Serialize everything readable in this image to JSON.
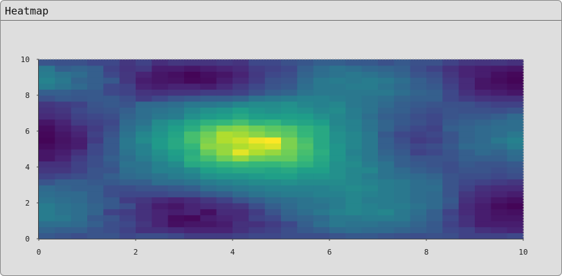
{
  "window": {
    "title": "Heatmap"
  },
  "chart_data": {
    "type": "heatmap",
    "title": "",
    "xlabel": "",
    "ylabel": "",
    "xlim": [
      0,
      10
    ],
    "ylim": [
      0,
      10
    ],
    "xticks": [
      "0",
      "2",
      "4",
      "6",
      "8",
      "10"
    ],
    "yticks": [
      "0",
      "2",
      "4",
      "6",
      "8",
      "10"
    ],
    "grid": false,
    "colormap": "viridis",
    "colormap_stops": [
      "#440154",
      "#482878",
      "#3e4989",
      "#31688e",
      "#26828e",
      "#1f9e89",
      "#35b779",
      "#6ece58",
      "#b5de2b",
      "#fde725"
    ],
    "value_range": [
      0,
      1
    ],
    "nx": 30,
    "ny": 30,
    "z": [
      [
        0.28,
        0.26,
        0.24,
        0.26,
        0.26,
        0.22,
        0.24,
        0.24,
        0.22,
        0.18,
        0.18,
        0.18,
        0.2,
        0.22,
        0.22,
        0.24,
        0.24,
        0.24,
        0.26,
        0.28,
        0.28,
        0.26,
        0.25,
        0.24,
        0.25,
        0.24,
        0.2,
        0.2,
        0.2,
        0.22
      ],
      [
        0.32,
        0.3,
        0.3,
        0.26,
        0.24,
        0.2,
        0.14,
        0.14,
        0.12,
        0.1,
        0.1,
        0.1,
        0.14,
        0.18,
        0.2,
        0.24,
        0.28,
        0.3,
        0.34,
        0.36,
        0.34,
        0.34,
        0.32,
        0.3,
        0.28,
        0.22,
        0.2,
        0.14,
        0.12,
        0.1
      ],
      [
        0.36,
        0.36,
        0.34,
        0.3,
        0.24,
        0.22,
        0.16,
        0.1,
        0.04,
        0.06,
        0.06,
        0.08,
        0.14,
        0.14,
        0.18,
        0.22,
        0.3,
        0.36,
        0.4,
        0.38,
        0.38,
        0.36,
        0.36,
        0.32,
        0.28,
        0.2,
        0.14,
        0.08,
        0.08,
        0.08
      ],
      [
        0.42,
        0.4,
        0.36,
        0.28,
        0.26,
        0.2,
        0.14,
        0.1,
        0.03,
        0.02,
        0.08,
        0.1,
        0.12,
        0.2,
        0.22,
        0.3,
        0.32,
        0.34,
        0.4,
        0.4,
        0.42,
        0.42,
        0.4,
        0.34,
        0.3,
        0.22,
        0.14,
        0.08,
        0.06,
        0.06
      ],
      [
        0.42,
        0.38,
        0.36,
        0.32,
        0.2,
        0.18,
        0.14,
        0.1,
        0.08,
        0.1,
        0.04,
        0.12,
        0.12,
        0.18,
        0.26,
        0.32,
        0.36,
        0.4,
        0.44,
        0.46,
        0.44,
        0.46,
        0.4,
        0.36,
        0.3,
        0.2,
        0.12,
        0.08,
        0.05,
        0.04
      ],
      [
        0.42,
        0.38,
        0.36,
        0.32,
        0.28,
        0.24,
        0.14,
        0.08,
        0.06,
        0.1,
        0.12,
        0.14,
        0.16,
        0.24,
        0.3,
        0.34,
        0.38,
        0.38,
        0.42,
        0.46,
        0.44,
        0.42,
        0.42,
        0.38,
        0.34,
        0.26,
        0.12,
        0.08,
        0.03,
        0.01
      ],
      [
        0.38,
        0.36,
        0.34,
        0.3,
        0.28,
        0.18,
        0.16,
        0.12,
        0.1,
        0.12,
        0.16,
        0.2,
        0.26,
        0.3,
        0.34,
        0.36,
        0.38,
        0.4,
        0.42,
        0.46,
        0.42,
        0.42,
        0.4,
        0.36,
        0.34,
        0.28,
        0.14,
        0.1,
        0.06,
        0.04
      ],
      [
        0.36,
        0.34,
        0.34,
        0.3,
        0.24,
        0.22,
        0.22,
        0.22,
        0.24,
        0.24,
        0.28,
        0.3,
        0.34,
        0.38,
        0.4,
        0.42,
        0.42,
        0.44,
        0.44,
        0.46,
        0.44,
        0.42,
        0.4,
        0.36,
        0.34,
        0.26,
        0.16,
        0.12,
        0.1,
        0.08
      ],
      [
        0.34,
        0.32,
        0.3,
        0.3,
        0.24,
        0.24,
        0.26,
        0.26,
        0.28,
        0.3,
        0.36,
        0.38,
        0.4,
        0.42,
        0.44,
        0.44,
        0.44,
        0.44,
        0.46,
        0.48,
        0.46,
        0.42,
        0.4,
        0.36,
        0.36,
        0.26,
        0.2,
        0.14,
        0.12,
        0.12
      ],
      [
        0.26,
        0.3,
        0.3,
        0.28,
        0.28,
        0.3,
        0.3,
        0.36,
        0.36,
        0.38,
        0.42,
        0.44,
        0.46,
        0.48,
        0.48,
        0.5,
        0.48,
        0.48,
        0.48,
        0.46,
        0.44,
        0.42,
        0.4,
        0.36,
        0.34,
        0.26,
        0.22,
        0.2,
        0.18,
        0.16
      ],
      [
        0.2,
        0.22,
        0.24,
        0.26,
        0.3,
        0.34,
        0.36,
        0.38,
        0.42,
        0.44,
        0.5,
        0.52,
        0.52,
        0.54,
        0.56,
        0.56,
        0.52,
        0.52,
        0.5,
        0.46,
        0.42,
        0.38,
        0.36,
        0.34,
        0.32,
        0.26,
        0.24,
        0.24,
        0.22,
        0.24
      ],
      [
        0.16,
        0.16,
        0.2,
        0.26,
        0.26,
        0.36,
        0.38,
        0.44,
        0.44,
        0.48,
        0.56,
        0.58,
        0.6,
        0.6,
        0.58,
        0.6,
        0.56,
        0.56,
        0.5,
        0.46,
        0.46,
        0.38,
        0.34,
        0.3,
        0.28,
        0.24,
        0.26,
        0.26,
        0.24,
        0.26
      ],
      [
        0.14,
        0.14,
        0.2,
        0.24,
        0.28,
        0.38,
        0.38,
        0.44,
        0.48,
        0.6,
        0.62,
        0.66,
        0.68,
        0.66,
        0.66,
        0.68,
        0.64,
        0.58,
        0.5,
        0.48,
        0.42,
        0.38,
        0.3,
        0.28,
        0.26,
        0.24,
        0.28,
        0.26,
        0.26,
        0.28
      ],
      [
        0.06,
        0.1,
        0.18,
        0.24,
        0.3,
        0.36,
        0.42,
        0.48,
        0.54,
        0.64,
        0.7,
        0.78,
        0.84,
        0.78,
        0.76,
        0.76,
        0.68,
        0.6,
        0.52,
        0.46,
        0.4,
        0.34,
        0.3,
        0.26,
        0.26,
        0.26,
        0.3,
        0.3,
        0.3,
        0.34
      ],
      [
        0.06,
        0.08,
        0.14,
        0.22,
        0.28,
        0.38,
        0.44,
        0.5,
        0.56,
        0.62,
        0.76,
        0.84,
        0.96,
        0.88,
        0.84,
        0.78,
        0.7,
        0.62,
        0.52,
        0.44,
        0.4,
        0.32,
        0.28,
        0.2,
        0.22,
        0.26,
        0.3,
        0.34,
        0.32,
        0.36
      ],
      [
        0.03,
        0.06,
        0.08,
        0.22,
        0.28,
        0.4,
        0.44,
        0.54,
        0.6,
        0.66,
        0.82,
        0.84,
        0.88,
        0.92,
        0.95,
        0.8,
        0.72,
        0.6,
        0.52,
        0.46,
        0.4,
        0.3,
        0.26,
        0.22,
        0.24,
        0.28,
        0.34,
        0.35,
        0.36,
        0.42
      ],
      [
        0.01,
        0.05,
        0.08,
        0.18,
        0.28,
        0.4,
        0.48,
        0.54,
        0.6,
        0.7,
        0.8,
        0.88,
        0.92,
        0.98,
        1.0,
        0.8,
        0.7,
        0.6,
        0.5,
        0.46,
        0.4,
        0.3,
        0.24,
        0.18,
        0.2,
        0.26,
        0.32,
        0.34,
        0.4,
        0.44
      ],
      [
        0.02,
        0.06,
        0.1,
        0.2,
        0.26,
        0.38,
        0.46,
        0.52,
        0.58,
        0.7,
        0.78,
        0.88,
        0.86,
        0.82,
        0.78,
        0.74,
        0.66,
        0.6,
        0.5,
        0.46,
        0.4,
        0.28,
        0.22,
        0.2,
        0.22,
        0.26,
        0.32,
        0.34,
        0.36,
        0.4
      ],
      [
        0.03,
        0.08,
        0.12,
        0.18,
        0.24,
        0.36,
        0.42,
        0.5,
        0.56,
        0.62,
        0.72,
        0.8,
        0.82,
        0.78,
        0.74,
        0.72,
        0.65,
        0.6,
        0.48,
        0.44,
        0.38,
        0.32,
        0.26,
        0.22,
        0.2,
        0.3,
        0.32,
        0.34,
        0.36,
        0.36
      ],
      [
        0.06,
        0.1,
        0.18,
        0.2,
        0.22,
        0.34,
        0.38,
        0.48,
        0.52,
        0.58,
        0.64,
        0.66,
        0.7,
        0.64,
        0.66,
        0.6,
        0.58,
        0.55,
        0.46,
        0.44,
        0.38,
        0.32,
        0.28,
        0.25,
        0.22,
        0.28,
        0.3,
        0.32,
        0.34,
        0.36
      ],
      [
        0.12,
        0.14,
        0.2,
        0.22,
        0.24,
        0.32,
        0.36,
        0.4,
        0.42,
        0.5,
        0.54,
        0.56,
        0.6,
        0.56,
        0.55,
        0.56,
        0.55,
        0.5,
        0.46,
        0.42,
        0.36,
        0.3,
        0.28,
        0.24,
        0.22,
        0.26,
        0.28,
        0.28,
        0.3,
        0.34
      ],
      [
        0.14,
        0.16,
        0.22,
        0.25,
        0.26,
        0.3,
        0.36,
        0.38,
        0.4,
        0.46,
        0.5,
        0.52,
        0.56,
        0.52,
        0.5,
        0.52,
        0.5,
        0.46,
        0.48,
        0.42,
        0.38,
        0.32,
        0.3,
        0.26,
        0.24,
        0.26,
        0.25,
        0.25,
        0.24,
        0.26
      ],
      [
        0.16,
        0.18,
        0.2,
        0.26,
        0.28,
        0.26,
        0.34,
        0.34,
        0.36,
        0.4,
        0.4,
        0.42,
        0.46,
        0.48,
        0.48,
        0.5,
        0.46,
        0.44,
        0.46,
        0.4,
        0.38,
        0.34,
        0.3,
        0.28,
        0.26,
        0.25,
        0.25,
        0.22,
        0.2,
        0.2
      ],
      [
        0.25,
        0.28,
        0.27,
        0.28,
        0.28,
        0.24,
        0.18,
        0.22,
        0.26,
        0.28,
        0.3,
        0.3,
        0.32,
        0.38,
        0.4,
        0.42,
        0.44,
        0.44,
        0.42,
        0.4,
        0.38,
        0.36,
        0.32,
        0.3,
        0.3,
        0.22,
        0.18,
        0.15,
        0.14,
        0.14
      ],
      [
        0.3,
        0.3,
        0.28,
        0.28,
        0.22,
        0.2,
        0.15,
        0.14,
        0.15,
        0.15,
        0.18,
        0.18,
        0.2,
        0.25,
        0.3,
        0.32,
        0.38,
        0.4,
        0.4,
        0.4,
        0.4,
        0.4,
        0.36,
        0.32,
        0.3,
        0.22,
        0.14,
        0.1,
        0.08,
        0.06
      ],
      [
        0.42,
        0.38,
        0.34,
        0.3,
        0.22,
        0.2,
        0.1,
        0.08,
        0.1,
        0.1,
        0.08,
        0.12,
        0.17,
        0.22,
        0.26,
        0.28,
        0.36,
        0.4,
        0.4,
        0.42,
        0.42,
        0.38,
        0.34,
        0.3,
        0.28,
        0.2,
        0.12,
        0.06,
        0.05,
        0.03
      ],
      [
        0.45,
        0.4,
        0.32,
        0.3,
        0.28,
        0.16,
        0.08,
        0.06,
        0.05,
        0.02,
        0.03,
        0.08,
        0.12,
        0.18,
        0.25,
        0.26,
        0.34,
        0.4,
        0.42,
        0.4,
        0.42,
        0.4,
        0.36,
        0.3,
        0.26,
        0.18,
        0.12,
        0.06,
        0.03,
        0.01
      ],
      [
        0.42,
        0.38,
        0.35,
        0.3,
        0.22,
        0.16,
        0.1,
        0.06,
        0.04,
        0.01,
        0.04,
        0.06,
        0.1,
        0.17,
        0.22,
        0.24,
        0.32,
        0.36,
        0.38,
        0.4,
        0.38,
        0.35,
        0.32,
        0.26,
        0.24,
        0.16,
        0.1,
        0.08,
        0.04,
        0.02
      ],
      [
        0.4,
        0.3,
        0.32,
        0.3,
        0.2,
        0.15,
        0.17,
        0.08,
        0.08,
        0.06,
        0.08,
        0.1,
        0.12,
        0.18,
        0.2,
        0.22,
        0.3,
        0.35,
        0.38,
        0.36,
        0.33,
        0.32,
        0.3,
        0.24,
        0.2,
        0.14,
        0.1,
        0.08,
        0.07,
        0.06
      ],
      [
        0.26,
        0.25,
        0.25,
        0.22,
        0.22,
        0.16,
        0.2,
        0.13,
        0.16,
        0.15,
        0.15,
        0.17,
        0.15,
        0.22,
        0.22,
        0.25,
        0.27,
        0.3,
        0.3,
        0.28,
        0.28,
        0.25,
        0.28,
        0.25,
        0.25,
        0.2,
        0.16,
        0.15,
        0.16,
        0.14
      ]
    ]
  }
}
